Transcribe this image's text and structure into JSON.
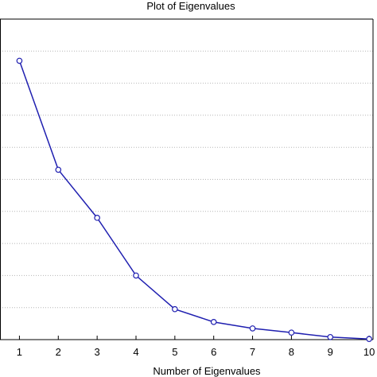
{
  "chart_data": {
    "type": "line",
    "title": "Plot of Eigenvalues",
    "xlabel": "Number of Eigenvalues",
    "ylabel": "",
    "x": [
      1,
      2,
      3,
      4,
      5,
      6,
      7,
      8,
      9,
      10
    ],
    "series": [
      {
        "values": [
          8.7,
          5.3,
          3.8,
          2.0,
          0.95,
          0.55,
          0.35,
          0.22,
          0.08,
          0.02
        ]
      }
    ],
    "xlim": [
      0.5,
      10.1
    ],
    "ylim": [
      0,
      10
    ],
    "y_grid_step": 1,
    "grid": true,
    "line_color": "#1f1fb0",
    "marker": "open-circle"
  }
}
